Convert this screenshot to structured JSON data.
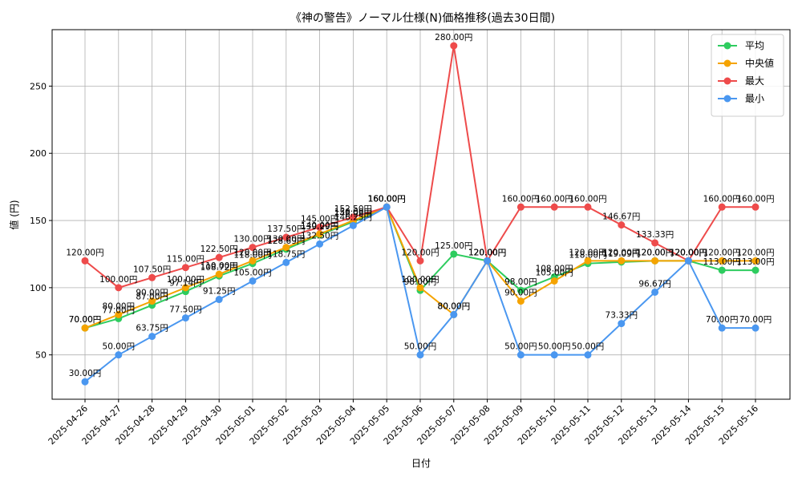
{
  "chart_data": {
    "type": "line",
    "title": "《神の警告》ノーマル仕様(N)価格推移(過去30日間)",
    "xlabel": "日付",
    "ylabel": "値 (円)",
    "ylim": [
      17,
      292
    ],
    "yticks": [
      50,
      100,
      150,
      200,
      250
    ],
    "grid": true,
    "legend_position": "top-right",
    "unit_suffix": "円",
    "categories": [
      "2025-04-26",
      "2025-04-27",
      "2025-04-28",
      "2025-04-29",
      "2025-04-30",
      "2025-05-01",
      "2025-05-02",
      "2025-05-03",
      "2025-05-04",
      "2025-05-05",
      "2025-05-06",
      "2025-05-07",
      "2025-05-08",
      "2025-05-09",
      "2025-05-10",
      "2025-05-11",
      "2025-05-12",
      "2025-05-13",
      "2025-05-14",
      "2025-05-15",
      "2025-05-16"
    ],
    "series": [
      {
        "name": "平均",
        "color": "#2ecc5f",
        "values": [
          70.0,
          77.0,
          87.0,
          97.14,
          108.72,
          118.0,
          128.69,
          139.29,
          148.98,
          160.0,
          98.0,
          125.0,
          120.0,
          98.0,
          108.0,
          118.0,
          119.09,
          120.0,
          120.0,
          113.0,
          113.0
        ]
      },
      {
        "name": "中央値",
        "color": "#f5a300",
        "values": [
          70.0,
          80.0,
          90.0,
          100.0,
          110.0,
          120.0,
          130.0,
          140.0,
          150.0,
          160.0,
          100.0,
          80.0,
          120.0,
          90.0,
          105.0,
          120.0,
          120.0,
          120.0,
          120.0,
          120.0,
          120.0
        ]
      },
      {
        "name": "最大",
        "color": "#ee4b4b",
        "values": [
          120.0,
          100.0,
          107.5,
          115.0,
          122.5,
          130.0,
          137.5,
          145.0,
          152.5,
          160.0,
          120.0,
          280.0,
          120.0,
          160.0,
          160.0,
          160.0,
          146.67,
          133.33,
          120.0,
          160.0,
          160.0
        ]
      },
      {
        "name": "最小",
        "color": "#4a97f0",
        "values": [
          30.0,
          50.0,
          63.75,
          77.5,
          91.25,
          105.0,
          118.75,
          132.5,
          146.25,
          160.0,
          50.0,
          80.0,
          120.0,
          50.0,
          50.0,
          50.0,
          73.33,
          96.67,
          120.0,
          70.0,
          70.0
        ]
      }
    ]
  }
}
